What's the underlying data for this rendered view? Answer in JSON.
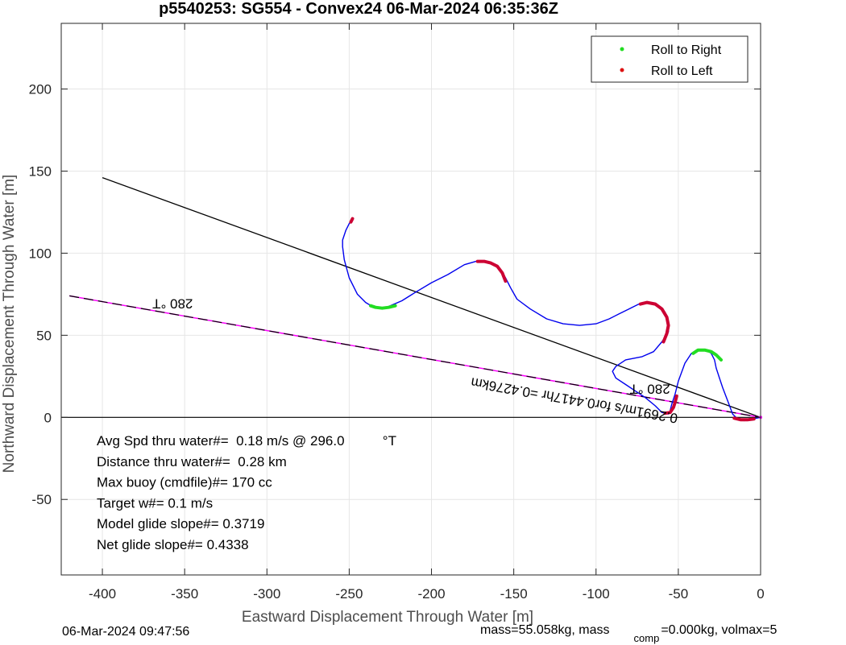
{
  "chart_data": {
    "type": "line",
    "title": "p5540253: SG554 - Convex24 06-Mar-2024 06:35:36Z",
    "xlabel": "Eastward Displacement Through Water [m]",
    "ylabel": "Northward Displacement Through Water [m]",
    "xlim": [
      -425,
      0
    ],
    "ylim": [
      -96,
      240
    ],
    "xticks": [
      -400,
      -350,
      -300,
      -250,
      -200,
      -150,
      -100,
      -50,
      0
    ],
    "yticks": [
      -50,
      0,
      50,
      100,
      150,
      200
    ],
    "grid": true,
    "legend_position": "top-right",
    "legend": [
      {
        "label": "Roll to Right",
        "color": "#22dd22"
      },
      {
        "label": "Roll to Left",
        "color": "#dd1111"
      }
    ],
    "track": [
      [
        0,
        0
      ],
      [
        -5,
        -1
      ],
      [
        -10,
        -2
      ],
      [
        -14,
        -1
      ],
      [
        -17,
        2
      ],
      [
        -20,
        10
      ],
      [
        -23,
        18
      ],
      [
        -25,
        24
      ],
      [
        -27,
        30
      ],
      [
        -28,
        35
      ],
      [
        -30,
        39
      ],
      [
        -33,
        41
      ],
      [
        -38,
        41
      ],
      [
        -42,
        39
      ],
      [
        -46,
        33
      ],
      [
        -50,
        22
      ],
      [
        -52,
        14
      ],
      [
        -54,
        8
      ],
      [
        -55,
        4
      ],
      [
        -56,
        2
      ],
      [
        -60,
        3
      ],
      [
        -64,
        7
      ],
      [
        -70,
        12
      ],
      [
        -76,
        16
      ],
      [
        -82,
        20
      ],
      [
        -88,
        24
      ],
      [
        -90,
        28
      ],
      [
        -88,
        31
      ],
      [
        -82,
        35
      ],
      [
        -72,
        37
      ],
      [
        -65,
        40
      ],
      [
        -60,
        46
      ],
      [
        -56,
        52
      ],
      [
        -56,
        58
      ],
      [
        -58,
        64
      ],
      [
        -62,
        68
      ],
      [
        -68,
        70
      ],
      [
        -74,
        69
      ],
      [
        -80,
        66
      ],
      [
        -86,
        63
      ],
      [
        -92,
        60
      ],
      [
        -100,
        57
      ],
      [
        -110,
        56
      ],
      [
        -120,
        57
      ],
      [
        -130,
        60
      ],
      [
        -140,
        66
      ],
      [
        -148,
        72
      ],
      [
        -152,
        79
      ],
      [
        -155,
        85
      ],
      [
        -158,
        90
      ],
      [
        -163,
        94
      ],
      [
        -168,
        95
      ],
      [
        -173,
        95
      ],
      [
        -180,
        93
      ],
      [
        -190,
        87
      ],
      [
        -200,
        82
      ],
      [
        -210,
        76
      ],
      [
        -218,
        71
      ],
      [
        -225,
        68
      ],
      [
        -230,
        66
      ],
      [
        -235,
        67
      ],
      [
        -240,
        70
      ],
      [
        -245,
        75
      ],
      [
        -250,
        85
      ],
      [
        -253,
        96
      ],
      [
        -254,
        104
      ],
      [
        -254,
        108
      ],
      [
        -252,
        114
      ],
      [
        -250,
        118
      ],
      [
        -248,
        121
      ]
    ],
    "roll_right": [
      [
        [
          -24,
          35
        ],
        [
          -27,
          38
        ],
        [
          -30,
          40
        ],
        [
          -34,
          41
        ],
        [
          -38,
          41
        ],
        [
          -41,
          39
        ]
      ],
      [
        [
          -222,
          68
        ],
        [
          -226,
          67
        ],
        [
          -230,
          66.5
        ],
        [
          -234,
          67
        ],
        [
          -237,
          68
        ]
      ]
    ],
    "roll_left": [
      [
        [
          -248,
          121
        ],
        [
          -248.5,
          120
        ],
        [
          -249,
          119
        ]
      ],
      [
        [
          -155,
          83
        ],
        [
          -157,
          88
        ],
        [
          -160,
          92
        ],
        [
          -164,
          94
        ],
        [
          -168,
          95
        ],
        [
          -172,
          95
        ]
      ],
      [
        [
          -59,
          46
        ],
        [
          -57,
          51
        ],
        [
          -56,
          56
        ],
        [
          -57,
          61
        ],
        [
          -60,
          66
        ],
        [
          -64,
          69
        ],
        [
          -69,
          70
        ],
        [
          -73,
          69
        ]
      ],
      [
        [
          -51,
          13
        ],
        [
          -52,
          9
        ],
        [
          -53,
          6
        ],
        [
          -55,
          3
        ],
        [
          -58,
          2.5
        ]
      ],
      [
        [
          -4,
          -1
        ],
        [
          -8,
          -1.5
        ],
        [
          -12,
          -1.5
        ],
        [
          -16,
          -0.5
        ]
      ]
    ],
    "heading_line": [
      [
        -400,
        146
      ],
      [
        0,
        0
      ]
    ],
    "current_line": [
      [
        -420,
        74
      ],
      [
        0,
        0
      ]
    ],
    "zero_line": [
      [
        -425,
        0
      ],
      [
        0,
        0
      ]
    ],
    "annotations": [
      {
        "text": "280 °T",
        "x": -345,
        "y": 72,
        "rotation": 180
      },
      {
        "text": "280 °T",
        "x": -55,
        "y": 20,
        "rotation": 180
      },
      {
        "text": "0.2691m/s for0.4417hr =0.4276km",
        "x": -50,
        "y": 2,
        "rotation": 190
      }
    ],
    "stats": [
      "Avg Spd thru water#=  0.18 m/s @ 296.0          °T",
      "Distance thru water#=  0.28 km",
      "Max buoy (cmdfile)#= 170 cc",
      "Target w#= 0.1 m/s",
      "Model glide slope#= 0.3719",
      "Net glide slope#= 0.4338"
    ],
    "colors": {
      "track": "#0000ee",
      "heading_line": "#000000",
      "current_line": "#ff00ff",
      "roll_right": "#22dd22",
      "roll_left": "#cc0033"
    }
  },
  "footer": {
    "timestamp": "06-Mar-2024 09:47:56",
    "mass_prefix": "mass=55.058kg, mass",
    "mass_sub": "comp",
    "mass_suffix": "=0.000kg, volmax=5"
  }
}
